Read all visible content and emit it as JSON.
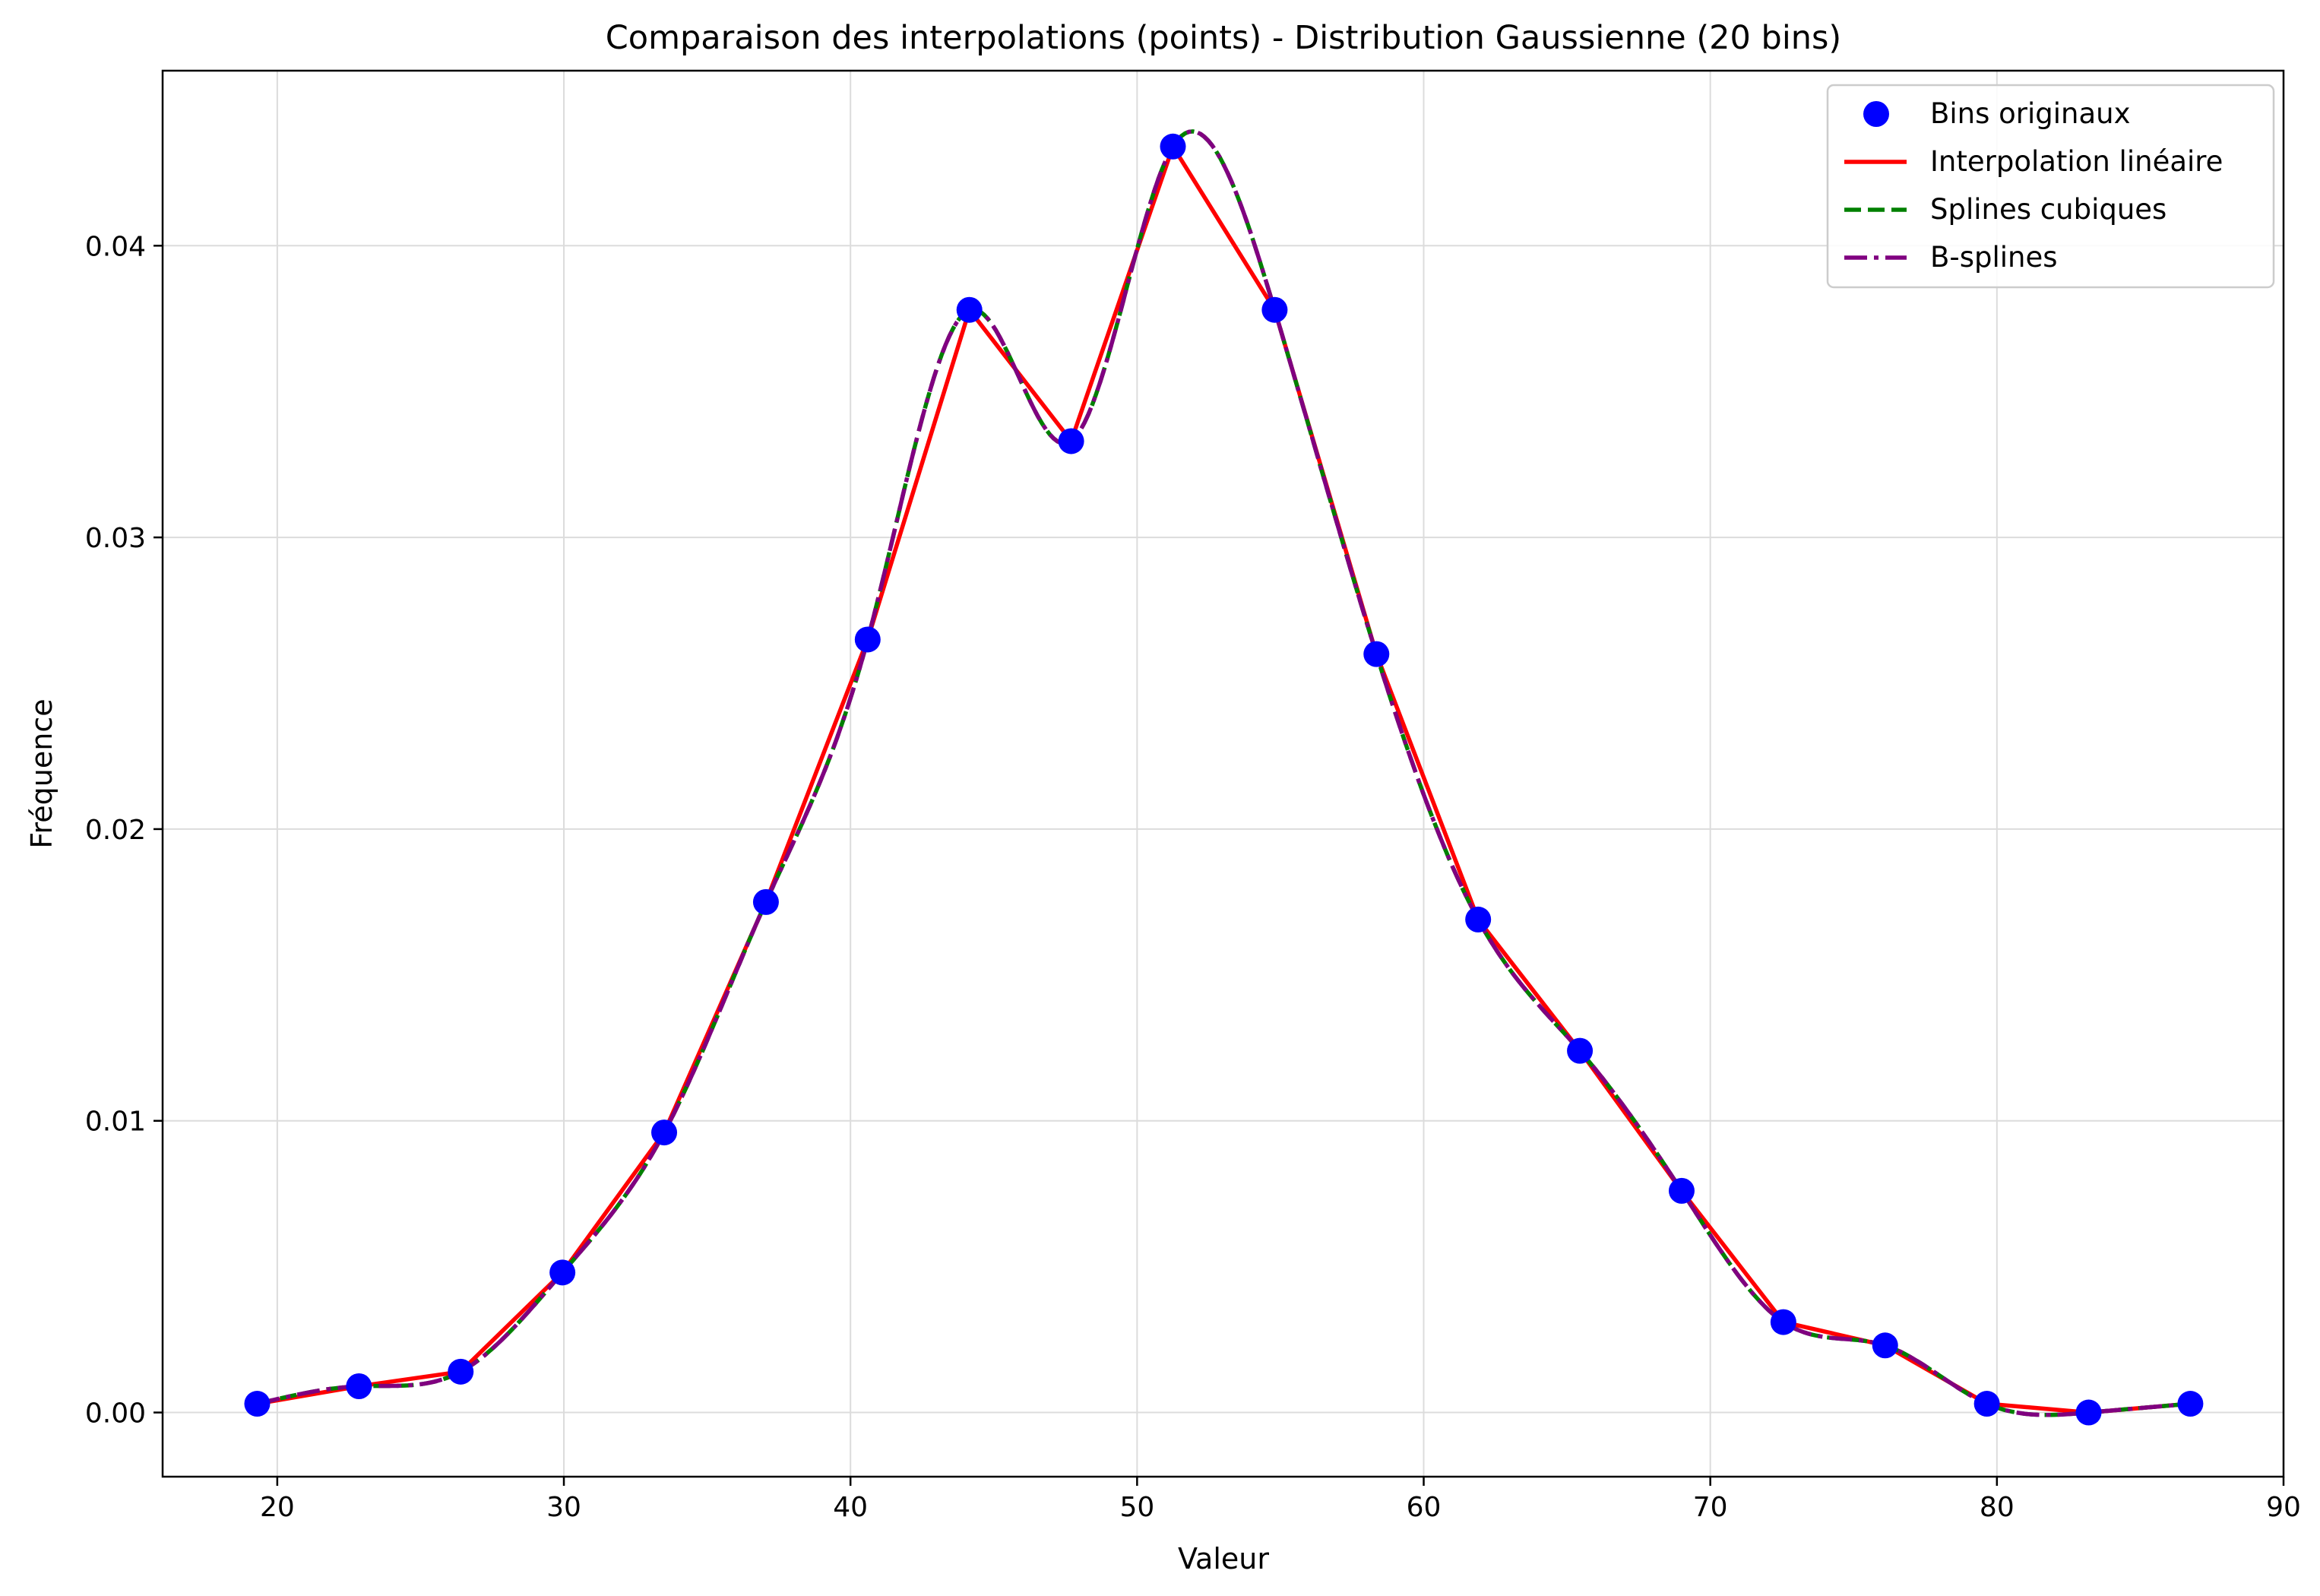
{
  "chart_data": {
    "type": "line",
    "title": "Comparaison des interpolations (points) - Distribution Gaussienne (20 bins)",
    "xlabel": "Valeur",
    "ylabel": "Fréquence",
    "xlim": [
      16,
      90
    ],
    "ylim": [
      -0.0022,
      0.046
    ],
    "xticks": [
      20,
      30,
      40,
      50,
      60,
      70,
      80,
      90
    ],
    "xtick_labels": [
      "20",
      "30",
      "40",
      "50",
      "60",
      "70",
      "80",
      "90"
    ],
    "yticks": [
      0.0,
      0.01,
      0.02,
      0.03,
      0.04
    ],
    "ytick_labels": [
      "0.00",
      "0.01",
      "0.02",
      "0.03",
      "0.04"
    ],
    "grid": true,
    "legend_position": "top-right",
    "x": [
      19.3,
      22.85,
      26.4,
      29.95,
      33.5,
      37.05,
      40.6,
      44.15,
      47.7,
      51.25,
      54.8,
      58.35,
      61.9,
      65.45,
      69.0,
      72.55,
      76.1,
      79.65,
      83.2,
      86.75
    ],
    "series": [
      {
        "name": "Bins originaux",
        "style": "markers",
        "color": "#0000ff",
        "values": [
          0.0003,
          0.0009,
          0.0014,
          0.0048,
          0.0096,
          0.0175,
          0.0265,
          0.0378,
          0.0333,
          0.0434,
          0.0378,
          0.026,
          0.0169,
          0.0124,
          0.0076,
          0.0031,
          0.0023,
          0.0003,
          0.0,
          0.0003
        ]
      },
      {
        "name": "Interpolation linéaire",
        "style": "solid",
        "color": "#ff0000",
        "values": [
          0.0003,
          0.0009,
          0.0014,
          0.0048,
          0.0096,
          0.0175,
          0.0265,
          0.0378,
          0.0333,
          0.0434,
          0.0378,
          0.026,
          0.0169,
          0.0124,
          0.0076,
          0.0031,
          0.0023,
          0.0003,
          0.0,
          0.0003
        ]
      },
      {
        "name": "Splines cubiques",
        "style": "dashed",
        "color": "#008000",
        "values": [
          0.0003,
          0.0009,
          0.0014,
          0.0048,
          0.0096,
          0.0175,
          0.0265,
          0.0378,
          0.0333,
          0.0434,
          0.0378,
          0.026,
          0.0169,
          0.0124,
          0.0076,
          0.0031,
          0.0023,
          0.0003,
          0.0,
          0.0003
        ]
      },
      {
        "name": "B-splines",
        "style": "dashdot",
        "color": "#800080",
        "values": [
          0.0003,
          0.0009,
          0.0014,
          0.0048,
          0.0096,
          0.0175,
          0.0265,
          0.0378,
          0.0333,
          0.0434,
          0.0378,
          0.026,
          0.0169,
          0.0124,
          0.0076,
          0.0031,
          0.0023,
          0.0003,
          0.0,
          0.0003
        ]
      }
    ]
  }
}
